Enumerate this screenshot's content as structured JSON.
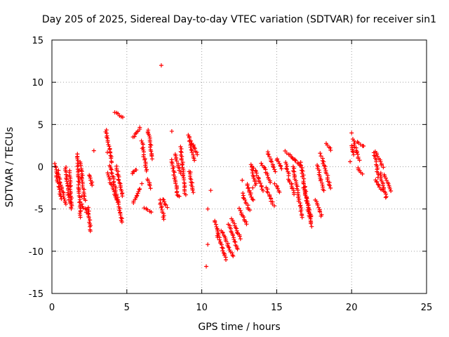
{
  "chart_data": {
    "type": "scatter",
    "title": "Day 205 of 2025, Sidereal Day-to-day VTEC variation (SDTVAR) for receiver sin1",
    "xlabel": "GPS time / hours",
    "ylabel": "SDTVAR / TECUs",
    "xlim": [
      0,
      25
    ],
    "ylim": [
      -15,
      15
    ],
    "xticks": [
      0,
      5,
      10,
      15,
      20,
      25
    ],
    "yticks": [
      -15,
      -10,
      -5,
      0,
      5,
      10,
      15
    ],
    "xtick_labels": [
      "0",
      "5",
      "10",
      "15",
      "20",
      "25"
    ],
    "ytick_labels": [
      "-15",
      "-10",
      "-5",
      "0",
      "5",
      "10",
      "15"
    ],
    "grid": true,
    "marker": "+",
    "color": "#ff0000",
    "segments": [
      {
        "x0": 0.2,
        "x1": 0.6,
        "y0": 0.3,
        "y1": -3.8
      },
      {
        "x0": 0.4,
        "x1": 0.9,
        "y0": -0.5,
        "y1": -4.4
      },
      {
        "x0": 0.9,
        "x1": 1.2,
        "y0": 0.0,
        "y1": -4.3
      },
      {
        "x0": 1.2,
        "x1": 1.3,
        "y0": -0.5,
        "y1": -5.0
      },
      {
        "x0": 1.7,
        "x1": 1.9,
        "y0": 1.5,
        "y1": -6.0
      },
      {
        "x0": 1.9,
        "x1": 2.2,
        "y0": 0.5,
        "y1": -4.0
      },
      {
        "x0": 2.0,
        "x1": 2.4,
        "y0": -4.5,
        "y1": -5.5
      },
      {
        "x0": 2.4,
        "x1": 2.6,
        "y0": -4.8,
        "y1": -7.6
      },
      {
        "x0": 2.5,
        "x1": 2.7,
        "y0": -1.0,
        "y1": -2.2
      },
      {
        "x0": 3.6,
        "x1": 4.0,
        "y0": 4.4,
        "y1": 0.5
      },
      {
        "x0": 3.7,
        "x1": 4.4,
        "y0": -0.8,
        "y1": -4.2
      },
      {
        "x0": 3.9,
        "x1": 4.7,
        "y0": 0.2,
        "y1": -6.6
      },
      {
        "x0": 4.2,
        "x1": 4.7,
        "y0": 6.5,
        "y1": 5.8
      },
      {
        "x0": 4.3,
        "x1": 4.7,
        "y0": 0.0,
        "y1": -3.5
      },
      {
        "x0": 5.4,
        "x1": 5.6,
        "y0": -0.8,
        "y1": -0.3
      },
      {
        "x0": 5.4,
        "x1": 5.9,
        "y0": 3.5,
        "y1": 4.6
      },
      {
        "x0": 5.4,
        "x1": 5.9,
        "y0": -4.3,
        "y1": -2.6
      },
      {
        "x0": 6.0,
        "x1": 6.3,
        "y0": 3.0,
        "y1": -0.5
      },
      {
        "x0": 6.2,
        "x1": 6.6,
        "y0": -4.8,
        "y1": -5.4
      },
      {
        "x0": 6.4,
        "x1": 6.7,
        "y0": 4.4,
        "y1": 1.0
      },
      {
        "x0": 6.4,
        "x1": 6.6,
        "y0": -1.5,
        "y1": -2.5
      },
      {
        "x0": 7.2,
        "x1": 7.5,
        "y0": -4.0,
        "y1": -6.2
      },
      {
        "x0": 7.4,
        "x1": 7.7,
        "y0": -3.8,
        "y1": -4.8
      },
      {
        "x0": 8.0,
        "x1": 8.4,
        "y0": 0.8,
        "y1": -3.5
      },
      {
        "x0": 8.2,
        "x1": 8.6,
        "y0": 1.5,
        "y1": -0.8
      },
      {
        "x0": 8.6,
        "x1": 8.9,
        "y0": 2.3,
        "y1": -3.3
      },
      {
        "x0": 9.1,
        "x1": 9.5,
        "y0": 3.8,
        "y1": 0.8
      },
      {
        "x0": 9.2,
        "x1": 9.4,
        "y0": -0.5,
        "y1": -3.0
      },
      {
        "x0": 9.3,
        "x1": 9.7,
        "y0": 3.0,
        "y1": 1.5
      },
      {
        "x0": 10.9,
        "x1": 11.1,
        "y0": -6.4,
        "y1": -8.3
      },
      {
        "x0": 11.1,
        "x1": 11.6,
        "y0": -8.0,
        "y1": -11.0
      },
      {
        "x0": 11.3,
        "x1": 12.1,
        "y0": -7.5,
        "y1": -10.6
      },
      {
        "x0": 11.8,
        "x1": 12.4,
        "y0": -6.8,
        "y1": -9.8
      },
      {
        "x0": 12.0,
        "x1": 12.6,
        "y0": -6.2,
        "y1": -8.5
      },
      {
        "x0": 12.5,
        "x1": 13.0,
        "y0": -5.0,
        "y1": -6.8
      },
      {
        "x0": 12.7,
        "x1": 13.2,
        "y0": -3.2,
        "y1": -5.2
      },
      {
        "x0": 13.0,
        "x1": 13.4,
        "y0": -2.0,
        "y1": -4.0
      },
      {
        "x0": 13.3,
        "x1": 13.6,
        "y0": 0.3,
        "y1": -2.2
      },
      {
        "x0": 13.5,
        "x1": 14.1,
        "y0": -0.2,
        "y1": -2.8
      },
      {
        "x0": 14.0,
        "x1": 14.6,
        "y0": 0.4,
        "y1": -1.8
      },
      {
        "x0": 14.4,
        "x1": 14.9,
        "y0": 1.8,
        "y1": -0.5
      },
      {
        "x0": 14.3,
        "x1": 14.8,
        "y0": -2.5,
        "y1": -4.6
      },
      {
        "x0": 14.9,
        "x1": 15.2,
        "y0": -2.0,
        "y1": -3.0
      },
      {
        "x0": 15.0,
        "x1": 15.3,
        "y0": 1.0,
        "y1": -0.2
      },
      {
        "x0": 15.6,
        "x1": 15.8,
        "y0": 0.5,
        "y1": -1.0
      },
      {
        "x0": 15.6,
        "x1": 16.2,
        "y0": 1.8,
        "y1": 0.8
      },
      {
        "x0": 15.8,
        "x1": 16.2,
        "y0": -1.5,
        "y1": -3.2
      },
      {
        "x0": 16.1,
        "x1": 16.7,
        "y0": 0.0,
        "y1": -6.0
      },
      {
        "x0": 16.2,
        "x1": 16.5,
        "y0": 0.8,
        "y1": 0.2
      },
      {
        "x0": 16.6,
        "x1": 17.3,
        "y0": 0.5,
        "y1": -7.0
      },
      {
        "x0": 16.8,
        "x1": 17.3,
        "y0": -2.5,
        "y1": -6.0
      },
      {
        "x0": 17.6,
        "x1": 18.0,
        "y0": -4.0,
        "y1": -5.8
      },
      {
        "x0": 17.7,
        "x1": 18.1,
        "y0": 0.2,
        "y1": -2.8
      },
      {
        "x0": 18.0,
        "x1": 18.6,
        "y0": 1.2,
        "y1": -2.5
      },
      {
        "x0": 18.3,
        "x1": 18.6,
        "y0": 2.8,
        "y1": 2.0
      },
      {
        "x0": 20.0,
        "x1": 20.1,
        "y0": 2.5,
        "y1": 1.5
      },
      {
        "x0": 20.1,
        "x1": 20.5,
        "y0": 3.2,
        "y1": 0.8
      },
      {
        "x0": 20.4,
        "x1": 20.8,
        "y0": 3.0,
        "y1": 2.4
      },
      {
        "x0": 20.4,
        "x1": 20.7,
        "y0": -0.2,
        "y1": -0.8
      },
      {
        "x0": 21.5,
        "x1": 21.8,
        "y0": 1.6,
        "y1": -1.2
      },
      {
        "x0": 21.6,
        "x1": 22.1,
        "y0": 1.8,
        "y1": 0.0
      },
      {
        "x0": 21.6,
        "x1": 22.0,
        "y0": -1.5,
        "y1": -2.8
      },
      {
        "x0": 21.9,
        "x1": 22.3,
        "y0": -0.8,
        "y1": -3.7
      },
      {
        "x0": 22.2,
        "x1": 22.6,
        "y0": -1.0,
        "y1": -2.8
      }
    ],
    "isolated_points": [
      {
        "x": 7.3,
        "y": 12.0
      },
      {
        "x": 8.0,
        "y": 4.2
      },
      {
        "x": 8.5,
        "y": -3.5
      },
      {
        "x": 6.0,
        "y": -2.0
      },
      {
        "x": 10.3,
        "y": -11.8
      },
      {
        "x": 10.4,
        "y": -9.2
      },
      {
        "x": 10.4,
        "y": -5.0
      },
      {
        "x": 10.6,
        "y": -2.8
      },
      {
        "x": 2.8,
        "y": 1.9
      },
      {
        "x": 3.7,
        "y": 1.7
      },
      {
        "x": 2.0,
        "y": -3.5
      },
      {
        "x": 16.0,
        "y": -2.0
      },
      {
        "x": 17.9,
        "y": 1.6
      },
      {
        "x": 20.0,
        "y": 4.0
      },
      {
        "x": 19.9,
        "y": 0.6
      },
      {
        "x": 13.4,
        "y": -2.5
      },
      {
        "x": 12.7,
        "y": -1.6
      }
    ]
  }
}
